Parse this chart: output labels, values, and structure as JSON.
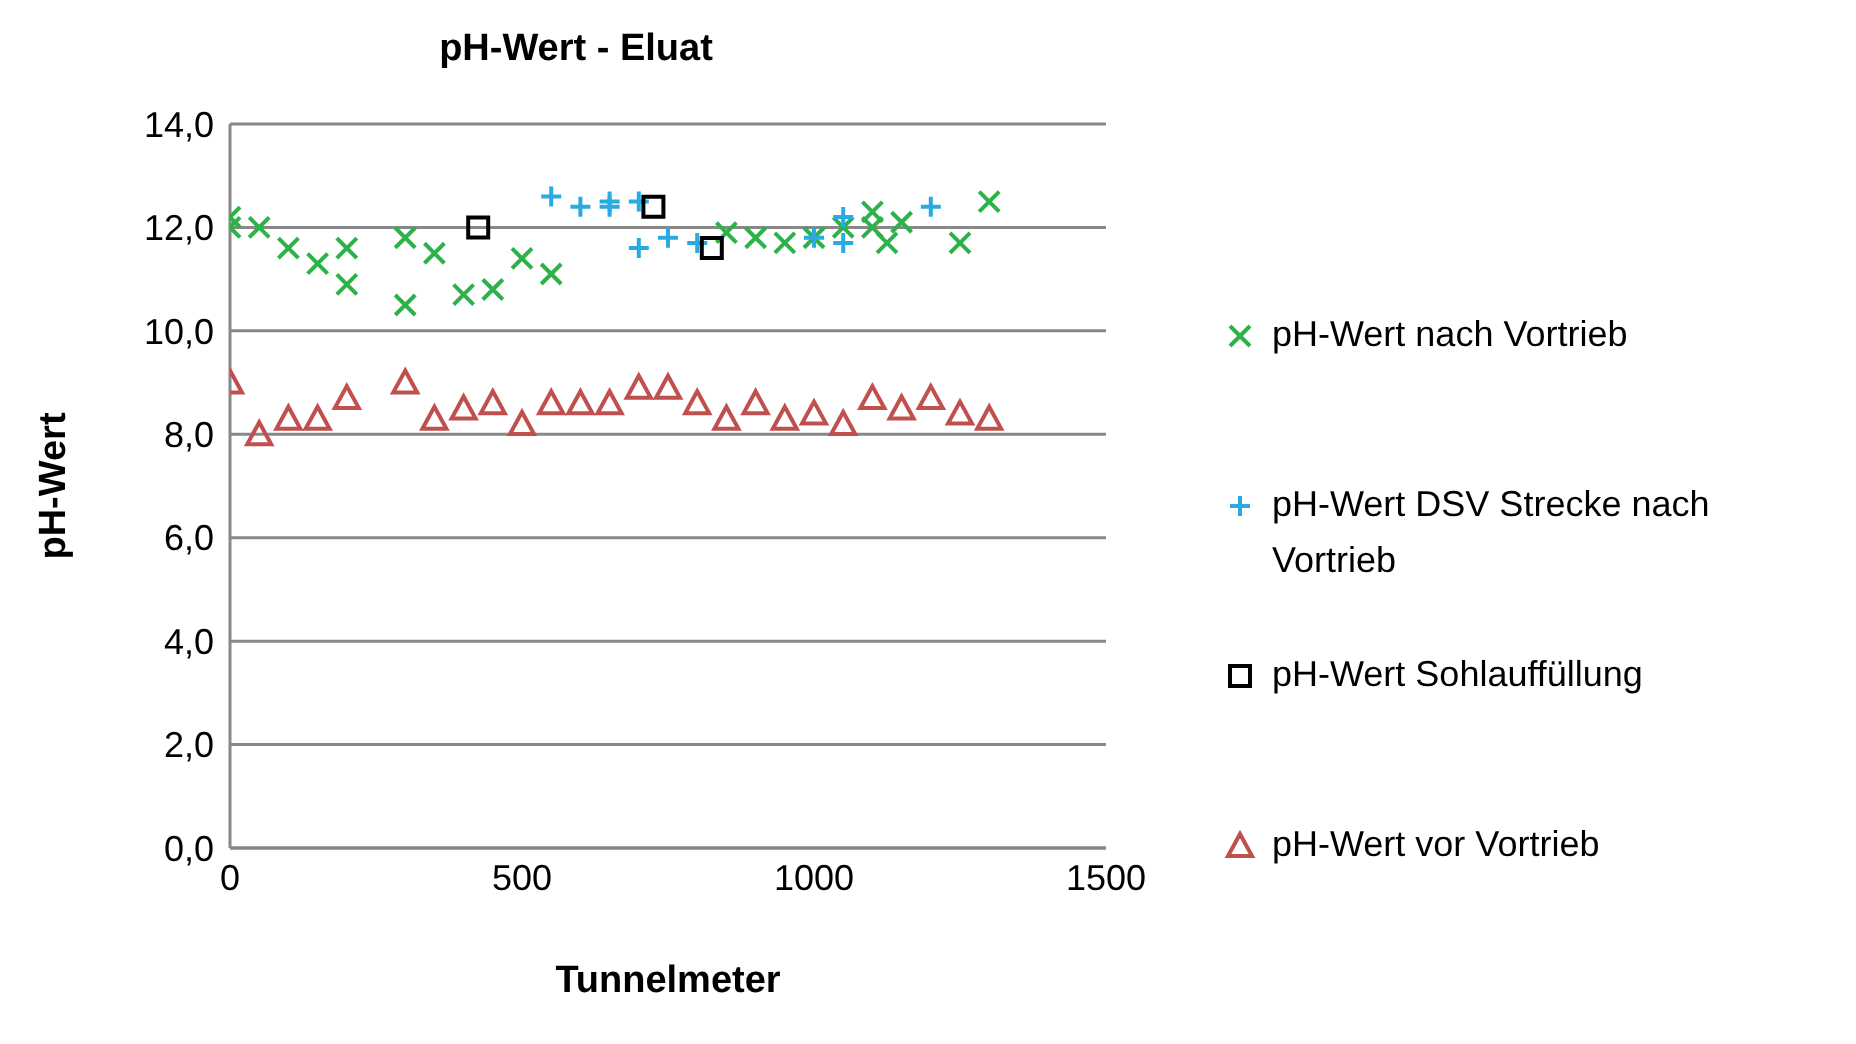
{
  "chart_data": {
    "type": "scatter",
    "title": "pH-Wert - Eluat",
    "xlabel": "Tunnelmeter",
    "ylabel": "pH-Wert",
    "xlim": [
      0,
      1500
    ],
    "xticks": [
      0,
      500,
      1000,
      1500
    ],
    "ylim": [
      0,
      14
    ],
    "yticks": [
      {
        "value": 0,
        "label": "0,0"
      },
      {
        "value": 2,
        "label": "2,0"
      },
      {
        "value": 4,
        "label": "4,0"
      },
      {
        "value": 6,
        "label": "6,0"
      },
      {
        "value": 8,
        "label": "8,0"
      },
      {
        "value": 10,
        "label": "10,0"
      },
      {
        "value": 12,
        "label": "12,0"
      },
      {
        "value": 14,
        "label": "14,0"
      }
    ],
    "grid": "y",
    "legend": "right",
    "series": [
      {
        "name": "pH-Wert nach Vortrieb",
        "color": "#2db24a",
        "marker": "cross",
        "x": [
          0,
          0,
          50,
          100,
          150,
          200,
          200,
          300,
          300,
          350,
          400,
          450,
          500,
          550,
          850,
          900,
          950,
          1000,
          1050,
          1100,
          1100,
          1125,
          1150,
          1250,
          1300
        ],
        "values": [
          12.2,
          12.0,
          12.0,
          11.6,
          11.3,
          11.6,
          10.9,
          11.8,
          10.5,
          11.5,
          10.7,
          10.8,
          11.4,
          11.1,
          11.9,
          11.8,
          11.7,
          11.8,
          12.0,
          12.3,
          12.0,
          11.7,
          12.1,
          11.7,
          12.5
        ]
      },
      {
        "name": "pH-Wert DSV Strecke nach Vortrieb",
        "color": "#29abe2",
        "marker": "plus",
        "x": [
          550,
          600,
          650,
          650,
          700,
          700,
          750,
          800,
          1000,
          1050,
          1050,
          1200
        ],
        "values": [
          12.6,
          12.4,
          12.4,
          12.5,
          12.5,
          11.6,
          11.8,
          11.7,
          11.8,
          12.2,
          11.7,
          12.4
        ]
      },
      {
        "name": "pH-Wert Sohlauffüllung",
        "color": "#000000",
        "marker": "square",
        "x": [
          425,
          725,
          825
        ],
        "values": [
          12.0,
          12.4,
          11.6
        ]
      },
      {
        "name": "pH-Wert vor Vortrieb",
        "color": "#c0504d",
        "marker": "triangle",
        "x": [
          0,
          50,
          100,
          150,
          200,
          300,
          350,
          400,
          450,
          500,
          550,
          600,
          650,
          700,
          750,
          800,
          850,
          900,
          950,
          1000,
          1050,
          1100,
          1150,
          1200,
          1250,
          1300
        ],
        "values": [
          9.0,
          8.0,
          8.3,
          8.3,
          8.7,
          9.0,
          8.3,
          8.5,
          8.6,
          8.2,
          8.6,
          8.6,
          8.6,
          8.9,
          8.9,
          8.6,
          8.3,
          8.6,
          8.3,
          8.4,
          8.2,
          8.7,
          8.5,
          8.7,
          8.4,
          8.3
        ]
      }
    ]
  }
}
